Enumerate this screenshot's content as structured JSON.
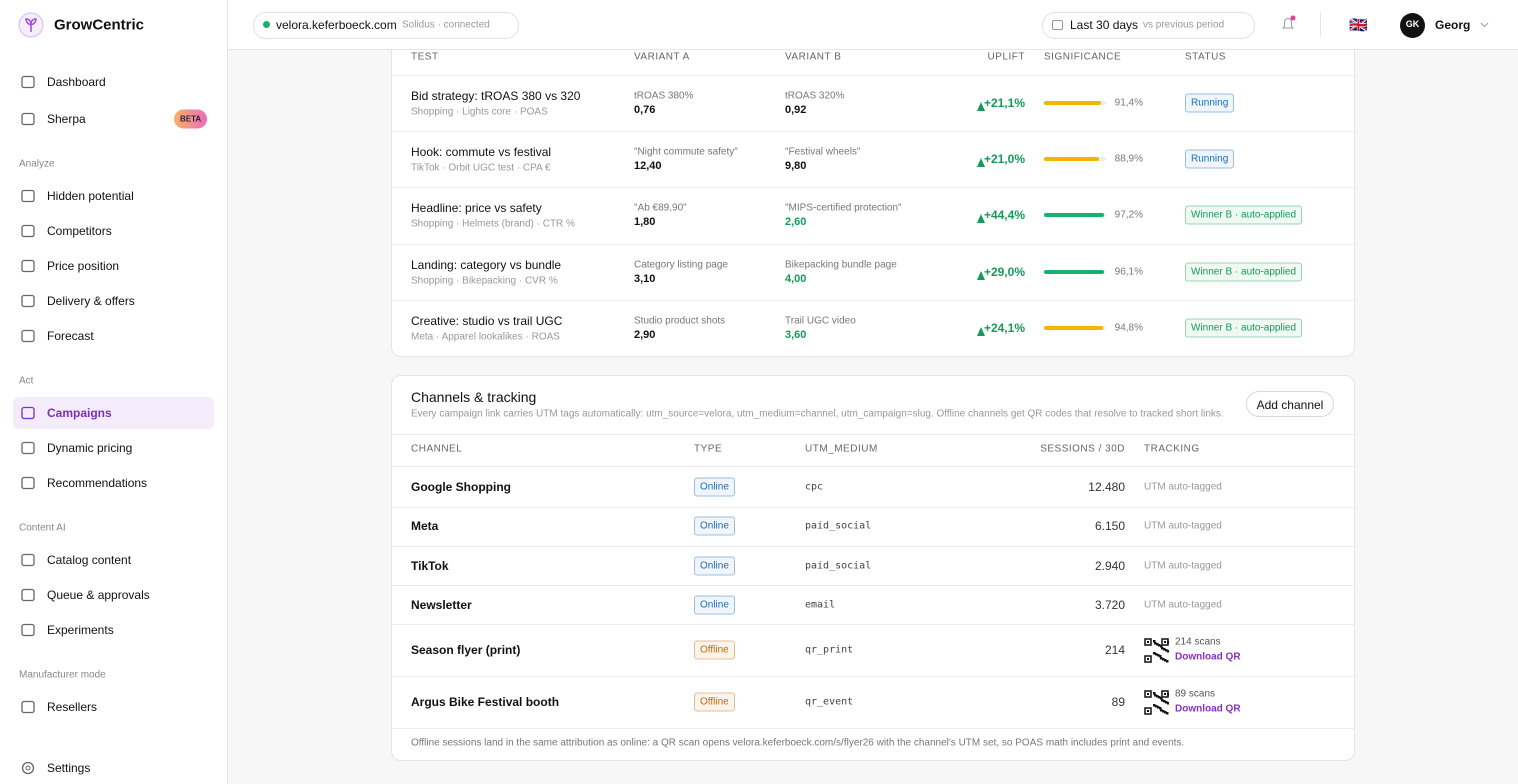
{
  "sidebar": {
    "brand": "GrowCentric",
    "badge": "BETA",
    "groups": [
      {
        "title": null,
        "items": [
          "Dashboard",
          "Sherpa"
        ]
      },
      {
        "title": "Analyze",
        "items": [
          "Hidden potential",
          "Competitors",
          "Price position",
          "Delivery & offers",
          "Forecast"
        ]
      },
      {
        "title": "Act",
        "items": [
          "Campaigns",
          "Dynamic pricing",
          "Recommendations"
        ]
      },
      {
        "title": "Content AI",
        "items": [
          "Catalog content",
          "Queue & approvals",
          "Experiments"
        ]
      },
      {
        "title": "Manufacturer mode",
        "items": [
          "Resellers"
        ]
      }
    ],
    "active": "Campaigns",
    "settings": "Settings"
  },
  "topbar": {
    "site": "velora.keferboeck.com",
    "site_status": "Solidus · connected",
    "period": "Last 30 days",
    "compare": "vs previous period",
    "flag": "🇬🇧",
    "initials": "GK",
    "user": "Georg"
  },
  "experiments": {
    "columns": [
      "TEST",
      "VARIANT A",
      "VARIANT B",
      "UPLIFT",
      "SIGNIFICANCE",
      "STATUS"
    ],
    "rows": [
      {
        "test": "Bid strategy: tROAS 380 vs 320",
        "meta": "Shopping · Lights core · POAS",
        "a_label": "tROAS 380%",
        "a_value": "0,76",
        "b_label": "tROAS 320%",
        "b_value": "0,92",
        "b_color": "#111111",
        "uplift": "+21,1%",
        "significance": {
          "value": 91.4,
          "label": "91,4%"
        },
        "bar_color": "#f5b400",
        "status": "Running",
        "status_color": "#1d6fb8"
      },
      {
        "test": "Hook: commute vs festival",
        "meta": "TikTok · Orbit UGC test · CPA €",
        "a_label": "\"Night commute safety\"",
        "a_value": "12,40",
        "b_label": "\"Festival wheels\"",
        "b_value": "9,80",
        "b_color": "#111111",
        "uplift": "+21,0%",
        "significance": {
          "value": 88.9,
          "label": "88,9%"
        },
        "bar_color": "#f5b400",
        "status": "Running",
        "status_color": "#1d6fb8"
      },
      {
        "test": "Headline: price vs safety",
        "meta": "Shopping · Helmets (brand) · CTR %",
        "a_label": "\"Ab €89,90\"",
        "a_value": "1,80",
        "b_label": "\"MIPS-certified protection\"",
        "b_value": "2,60",
        "b_color": "#169a5a",
        "uplift": "+44,4%",
        "significance": {
          "value": 97.2,
          "label": "97,2%"
        },
        "bar_color": "#16b26e",
        "status": "Winner B · auto-applied",
        "status_color": "#169a5a"
      },
      {
        "test": "Landing: category vs bundle",
        "meta": "Shopping · Bikepacking · CVR %",
        "a_label": "Category listing page",
        "a_value": "3,10",
        "b_label": "Bikepacking bundle page",
        "b_value": "4,00",
        "b_color": "#169a5a",
        "uplift": "+29,0%",
        "significance": {
          "value": 96.1,
          "label": "96,1%"
        },
        "bar_color": "#16b26e",
        "status": "Winner B · auto-applied",
        "status_color": "#169a5a"
      },
      {
        "test": "Creative: studio vs trail UGC",
        "meta": "Meta · Apparel lookalikes · ROAS",
        "a_label": "Studio product shots",
        "a_value": "2,90",
        "b_label": "Trail UGC video",
        "b_value": "3,60",
        "b_color": "#169a5a",
        "uplift": "+24,1%",
        "significance": {
          "value": 94.8,
          "label": "94,8%"
        },
        "bar_color": "#f5b400",
        "status": "Winner B · auto-applied",
        "status_color": "#169a5a"
      }
    ]
  },
  "channels": {
    "title": "Channels & tracking",
    "description": "Every campaign link carries UTM tags automatically: utm_source=velora, utm_medium=channel, utm_campaign=slug. Offline channels get QR codes that resolve to tracked short links.",
    "button": "Add channel",
    "columns": [
      "CHANNEL",
      "TYPE",
      "UTM_MEDIUM",
      "SESSIONS / 30D",
      "TRACKING"
    ],
    "rows": [
      {
        "name": "Google Shopping",
        "type": "Online",
        "type_color": "#1d6fb8",
        "utm": "cpc",
        "sessions": "12.480",
        "tracking": "UTM auto-tagged"
      },
      {
        "name": "Meta",
        "type": "Online",
        "type_color": "#1d6fb8",
        "utm": "paid_social",
        "sessions": "6.150",
        "tracking": "UTM auto-tagged"
      },
      {
        "name": "TikTok",
        "type": "Online",
        "type_color": "#1d6fb8",
        "utm": "paid_social",
        "sessions": "2.940",
        "tracking": "UTM auto-tagged"
      },
      {
        "name": "Newsletter",
        "type": "Online",
        "type_color": "#1d6fb8",
        "utm": "email",
        "sessions": "3.720",
        "tracking": "UTM auto-tagged"
      },
      {
        "name": "Season flyer (print)",
        "type": "Offline",
        "type_color": "#c96a00",
        "utm": "qr_print",
        "sessions": "214",
        "scans": "214 scans",
        "link": "Download QR"
      },
      {
        "name": "Argus Bike Festival booth",
        "type": "Offline",
        "type_color": "#c96a00",
        "utm": "qr_event",
        "sessions": "89",
        "scans": "89 scans",
        "link": "Download QR"
      }
    ],
    "footnote": "Offline sessions land in the same attribution as online: a QR scan opens velora.keferboeck.com/s/flyer26 with the channel's UTM set, so POAS math includes print and events."
  }
}
